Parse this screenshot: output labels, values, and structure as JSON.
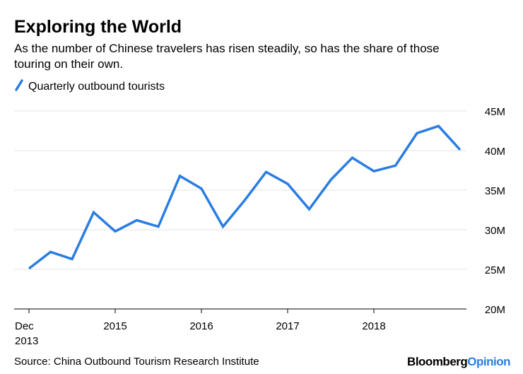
{
  "chart_data": {
    "type": "line",
    "title": "Exploring the World",
    "subtitle": [
      "As the number of Chinese travelers has risen steadily, so has the share of those",
      "touring on their own."
    ],
    "categories": [
      "Dec 2013",
      null,
      null,
      null,
      "2015",
      null,
      null,
      null,
      "2016",
      null,
      null,
      null,
      "2017",
      null,
      null,
      null,
      "2018",
      null,
      null,
      null,
      null
    ],
    "series": [
      {
        "name": "Quarterly outbound tourists",
        "color": "#2a7de1",
        "values": [
          25.1,
          27.2,
          26.3,
          32.2,
          29.8,
          31.2,
          30.4,
          36.8,
          35.2,
          30.4,
          33.7,
          37.3,
          35.8,
          32.6,
          36.3,
          39.1,
          37.4,
          38.1,
          42.2,
          43.1,
          40.1
        ]
      }
    ],
    "ylim": [
      20,
      45
    ],
    "yticks": [
      {
        "value": 20,
        "label": "20M"
      },
      {
        "value": 25,
        "label": "25M"
      },
      {
        "value": 30,
        "label": "30M"
      },
      {
        "value": 35,
        "label": "35M"
      },
      {
        "value": 40,
        "label": "40M"
      },
      {
        "value": 45,
        "label": "45M"
      }
    ],
    "grid": true,
    "source": "Source: China Outbound Tourism Research Institute",
    "logo": [
      "Bloomberg",
      "Opinion"
    ]
  }
}
